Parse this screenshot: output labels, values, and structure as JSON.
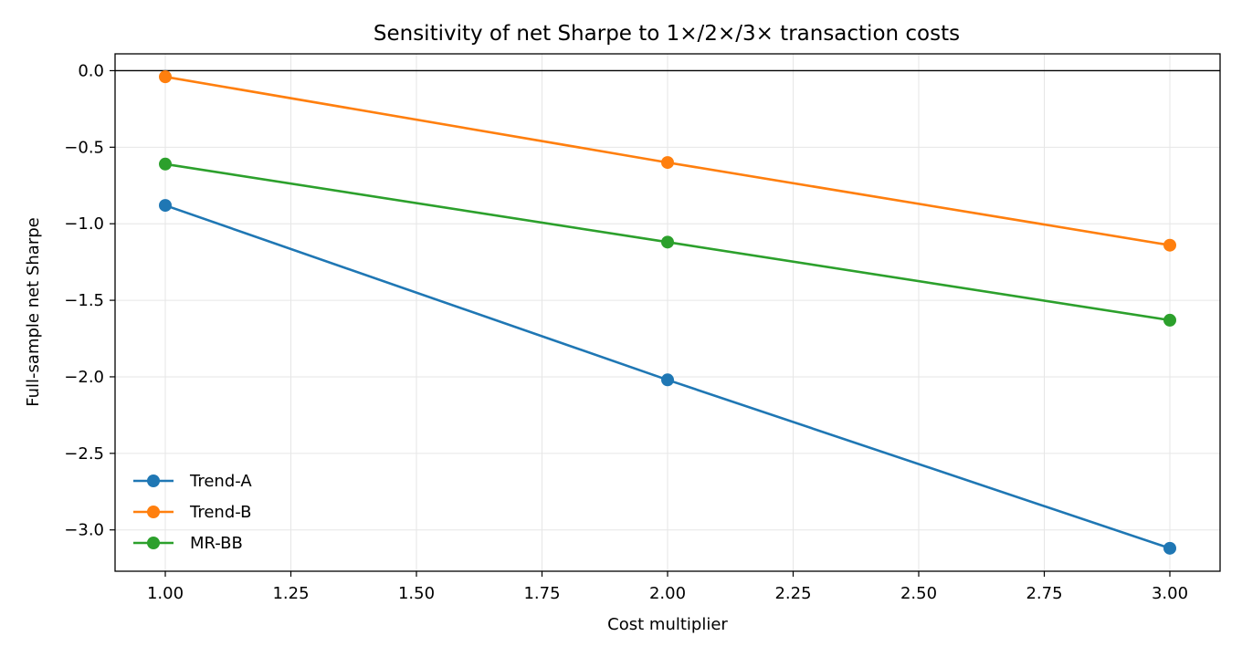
{
  "chart_data": {
    "type": "line",
    "title": "Sensitivity of net Sharpe to 1×/2×/3× transaction costs",
    "xlabel": "Cost multiplier",
    "ylabel": "Full-sample net Sharpe",
    "x": [
      1.0,
      2.0,
      3.0
    ],
    "xlim": [
      0.9,
      3.1
    ],
    "ylim": [
      -3.27,
      0.11
    ],
    "xticks": [
      1.0,
      1.25,
      1.5,
      1.75,
      2.0,
      2.25,
      2.5,
      2.75,
      3.0
    ],
    "xtick_labels": [
      "1.00",
      "1.25",
      "1.50",
      "1.75",
      "2.00",
      "2.25",
      "2.50",
      "2.75",
      "3.00"
    ],
    "yticks": [
      0.0,
      -0.5,
      -1.0,
      -1.5,
      -2.0,
      -2.5,
      -3.0
    ],
    "ytick_labels": [
      "0.0",
      "−0.5",
      "−1.0",
      "−1.5",
      "−2.0",
      "−2.5",
      "−3.0"
    ],
    "reference_line_y": 0.0,
    "grid": true,
    "legend_position": "lower-left",
    "series": [
      {
        "name": "Trend-A",
        "color": "#1f77b4",
        "values": [
          -0.88,
          -2.02,
          -3.12
        ]
      },
      {
        "name": "Trend-B",
        "color": "#ff7f0e",
        "values": [
          -0.04,
          -0.6,
          -1.14
        ]
      },
      {
        "name": "MR-BB",
        "color": "#2ca02c",
        "values": [
          -0.61,
          -1.12,
          -1.63
        ]
      }
    ]
  }
}
